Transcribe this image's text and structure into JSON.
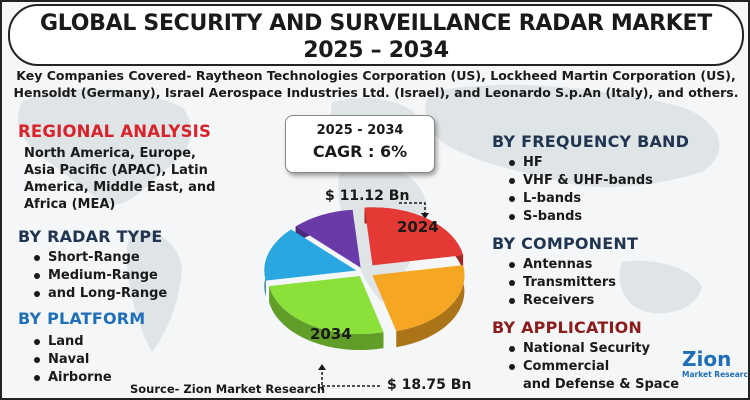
{
  "title": {
    "line1": "GLOBAL SECURITY AND SURVEILLANCE RADAR MARKET",
    "line2": "2025 – 2034"
  },
  "subtitle": {
    "line1": "Key Companies Covered- Raytheon Technologies Corporation (US), Lockheed Martin Corporation (US),",
    "line2": "Hensoldt (Germany), Israel Aerospace Industries Ltd. (Israel), and Leonardo S.p.An (Italy), and others."
  },
  "regional": {
    "title": "REGIONAL ANALYSIS",
    "lines": [
      "North America, Europe,",
      "Asia Pacific (APAC), Latin",
      "America, Middle East, and",
      "Africa (MEA)"
    ]
  },
  "radar_type": {
    "title": "BY RADAR TYPE",
    "items": [
      "Short-Range",
      "Medium-Range",
      "and Long-Range"
    ]
  },
  "platform": {
    "title": "BY PLATFORM",
    "items": [
      "Land",
      "Naval",
      "Airborne"
    ]
  },
  "frequency": {
    "title": "BY FREQUENCY BAND",
    "items": [
      "HF",
      "VHF & UHF-bands",
      "L-bands",
      "S-bands"
    ]
  },
  "component": {
    "title": "BY COMPONENT",
    "items": [
      "Antennas",
      "Transmitters",
      "Receivers"
    ]
  },
  "application": {
    "title": "BY APPLICATION",
    "items": [
      "National Security",
      "Commercial",
      "and Defense & Space"
    ]
  },
  "cagr": {
    "years": "2025 - 2034",
    "value": "CAGR : 6%"
  },
  "market": {
    "value_2024": "$ 11.12 Bn",
    "value_2034": "$ 18.75 Bn",
    "label_2024": "2024",
    "label_2034": "2034"
  },
  "pie": {
    "colors": [
      "#e53935",
      "#f5a623",
      "#8be03a",
      "#2aa7e0",
      "#6a3aa8"
    ]
  },
  "source": "Source- Zion Market Research",
  "logo": {
    "word": "Zion",
    "sub": "Market Research"
  },
  "colors": {
    "red_heading": "#d8232a",
    "navy_heading": "#1f3550",
    "blue_heading": "#1f6fb8",
    "maroon_heading": "#8b1c1c"
  }
}
